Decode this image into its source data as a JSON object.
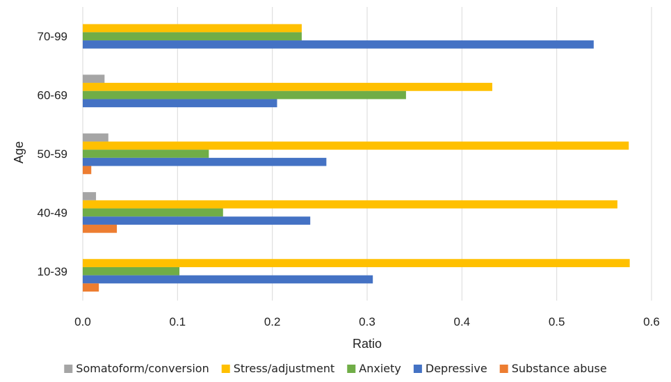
{
  "chart_data": {
    "type": "bar",
    "orientation": "horizontal",
    "categories": [
      "70-99",
      "60-69",
      "50-59",
      "40-49",
      "10-39"
    ],
    "series": [
      {
        "name": "Somatoform/conversion",
        "color": "#a5a5a5",
        "values": [
          0.0,
          0.023,
          0.027,
          0.014,
          0.0
        ]
      },
      {
        "name": "Stress/adjustment",
        "color": "#ffc000",
        "values": [
          0.231,
          0.432,
          0.576,
          0.564,
          0.577
        ]
      },
      {
        "name": "Anxiety",
        "color": "#70ad47",
        "values": [
          0.231,
          0.341,
          0.133,
          0.148,
          0.102
        ]
      },
      {
        "name": "Depressive",
        "color": "#4472c4",
        "values": [
          0.539,
          0.205,
          0.257,
          0.24,
          0.306
        ]
      },
      {
        "name": "Substance abuse",
        "color": "#ed7d31",
        "values": [
          0.0,
          0.0,
          0.009,
          0.036,
          0.017
        ]
      }
    ],
    "xlim": [
      0,
      0.6
    ],
    "xticks": [
      "0.0",
      "0.1",
      "0.2",
      "0.3",
      "0.4",
      "0.5",
      "0.6"
    ],
    "xlabel": "Ratio",
    "ylabel": "Age",
    "grid": "vertical",
    "legend_position": "bottom"
  }
}
